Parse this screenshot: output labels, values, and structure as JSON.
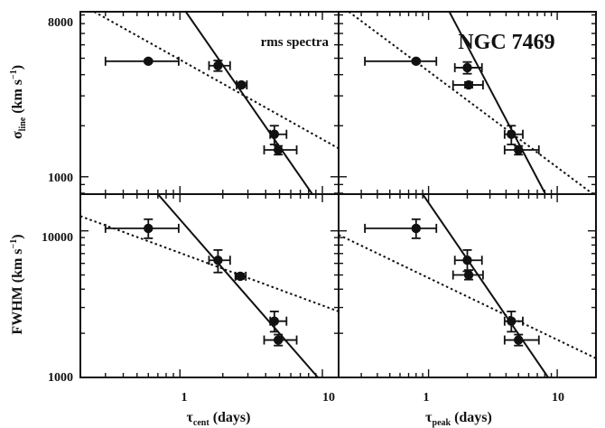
{
  "chart_data": {
    "type": "scatter",
    "scale": "log-log",
    "title": "NGC 7469",
    "annotation": "rms spectra",
    "x_axes": [
      {
        "label": "τ",
        "subscript": "cent",
        "unit": "(days)",
        "range": [
          0.2,
          13
        ],
        "ticks": [
          1,
          10
        ],
        "tick_labels": [
          "1",
          "10"
        ]
      },
      {
        "label": "τ",
        "subscript": "peak",
        "unit": "(days)",
        "range": [
          0.2,
          20
        ],
        "ticks": [
          1,
          10
        ],
        "tick_labels": [
          "1",
          "10"
        ]
      }
    ],
    "y_axes": [
      {
        "label": "σ",
        "subscript": "line",
        "unit": "(km s",
        "unit_sup": "−1",
        "unit_close": ")",
        "range": [
          790,
          9400
        ],
        "ticks": [
          1000,
          8000
        ],
        "tick_labels": [
          "1000",
          "8000"
        ]
      },
      {
        "label": "FWHM",
        "unit": "(km s",
        "unit_sup": "−1",
        "unit_close": ")",
        "range": [
          1000,
          17800
        ],
        "ticks": [
          1000,
          10000
        ],
        "tick_labels": [
          "1000",
          "10000"
        ]
      }
    ],
    "panels": [
      {
        "row": 0,
        "col": 0,
        "points": [
          {
            "x": 0.6,
            "xlo": 0.3,
            "xhi": 0.98,
            "y": 4800,
            "ylo": 4700,
            "yhi": 4900
          },
          {
            "x": 1.85,
            "xlo": 1.6,
            "xhi": 2.25,
            "y": 4520,
            "ylo": 4200,
            "yhi": 4850
          },
          {
            "x": 2.7,
            "xlo": 2.5,
            "xhi": 2.95,
            "y": 3480,
            "ylo": 3380,
            "yhi": 3580
          },
          {
            "x": 4.6,
            "xlo": 4.3,
            "xhi": 5.6,
            "y": 1780,
            "ylo": 1550,
            "yhi": 2000
          },
          {
            "x": 4.9,
            "xlo": 3.9,
            "xhi": 6.6,
            "y": 1440,
            "ylo": 1350,
            "yhi": 1520
          }
        ],
        "fits": [
          {
            "style": "solid",
            "x": [
              1.1,
              8.5
            ],
            "y": [
              9400,
              790
            ]
          },
          {
            "style": "dotted",
            "x": [
              0.25,
              13
            ],
            "y": [
              9400,
              1470
            ]
          }
        ]
      },
      {
        "row": 0,
        "col": 1,
        "points": [
          {
            "x": 0.8,
            "xlo": 0.32,
            "xhi": 1.15,
            "y": 4800,
            "ylo": 4700,
            "yhi": 4900
          },
          {
            "x": 2.0,
            "xlo": 1.6,
            "xhi": 2.6,
            "y": 4400,
            "ylo": 4050,
            "yhi": 4750
          },
          {
            "x": 2.05,
            "xlo": 1.55,
            "xhi": 2.65,
            "y": 3480,
            "ylo": 3350,
            "yhi": 3620
          },
          {
            "x": 4.4,
            "xlo": 3.9,
            "xhi": 5.4,
            "y": 1780,
            "ylo": 1550,
            "yhi": 2000
          },
          {
            "x": 5.0,
            "xlo": 3.9,
            "xhi": 7.2,
            "y": 1440,
            "ylo": 1350,
            "yhi": 1520
          }
        ],
        "fits": [
          {
            "style": "solid",
            "x": [
              1.45,
              8.1
            ],
            "y": [
              9400,
              790
            ]
          },
          {
            "style": "dotted",
            "x": [
              0.24,
              19
            ],
            "y": [
              9400,
              790
            ]
          }
        ]
      },
      {
        "row": 1,
        "col": 0,
        "points": [
          {
            "x": 0.6,
            "xlo": 0.3,
            "xhi": 0.98,
            "y": 10400,
            "ylo": 8900,
            "yhi": 12000
          },
          {
            "x": 1.85,
            "xlo": 1.6,
            "xhi": 2.25,
            "y": 6300,
            "ylo": 5200,
            "yhi": 7400
          },
          {
            "x": 2.65,
            "xlo": 2.45,
            "xhi": 2.9,
            "y": 4900,
            "ylo": 4700,
            "yhi": 5100
          },
          {
            "x": 4.6,
            "xlo": 4.3,
            "xhi": 5.6,
            "y": 2420,
            "ylo": 2050,
            "yhi": 2820
          },
          {
            "x": 4.9,
            "xlo": 3.9,
            "xhi": 6.6,
            "y": 1800,
            "ylo": 1650,
            "yhi": 1960
          }
        ],
        "fits": [
          {
            "style": "solid",
            "x": [
              0.7,
              9.3
            ],
            "y": [
              17800,
              1000
            ]
          },
          {
            "style": "dotted",
            "x": [
              0.2,
              13
            ],
            "y": [
              12600,
              2820
            ]
          }
        ]
      },
      {
        "row": 1,
        "col": 1,
        "points": [
          {
            "x": 0.8,
            "xlo": 0.32,
            "xhi": 1.15,
            "y": 10400,
            "ylo": 8900,
            "yhi": 12000
          },
          {
            "x": 2.0,
            "xlo": 1.6,
            "xhi": 2.6,
            "y": 6300,
            "ylo": 5300,
            "yhi": 7400
          },
          {
            "x": 2.05,
            "xlo": 1.55,
            "xhi": 2.65,
            "y": 5000,
            "ylo": 4650,
            "yhi": 5400
          },
          {
            "x": 4.4,
            "xlo": 3.9,
            "xhi": 5.4,
            "y": 2420,
            "ylo": 2050,
            "yhi": 2820
          },
          {
            "x": 5.0,
            "xlo": 3.9,
            "xhi": 7.2,
            "y": 1800,
            "ylo": 1650,
            "yhi": 1960
          }
        ],
        "fits": [
          {
            "style": "solid",
            "x": [
              0.9,
              8.5
            ],
            "y": [
              17800,
              1000
            ]
          },
          {
            "style": "dotted",
            "x": [
              0.2,
              20
            ],
            "y": [
              9400,
              1350
            ]
          }
        ]
      }
    ]
  }
}
